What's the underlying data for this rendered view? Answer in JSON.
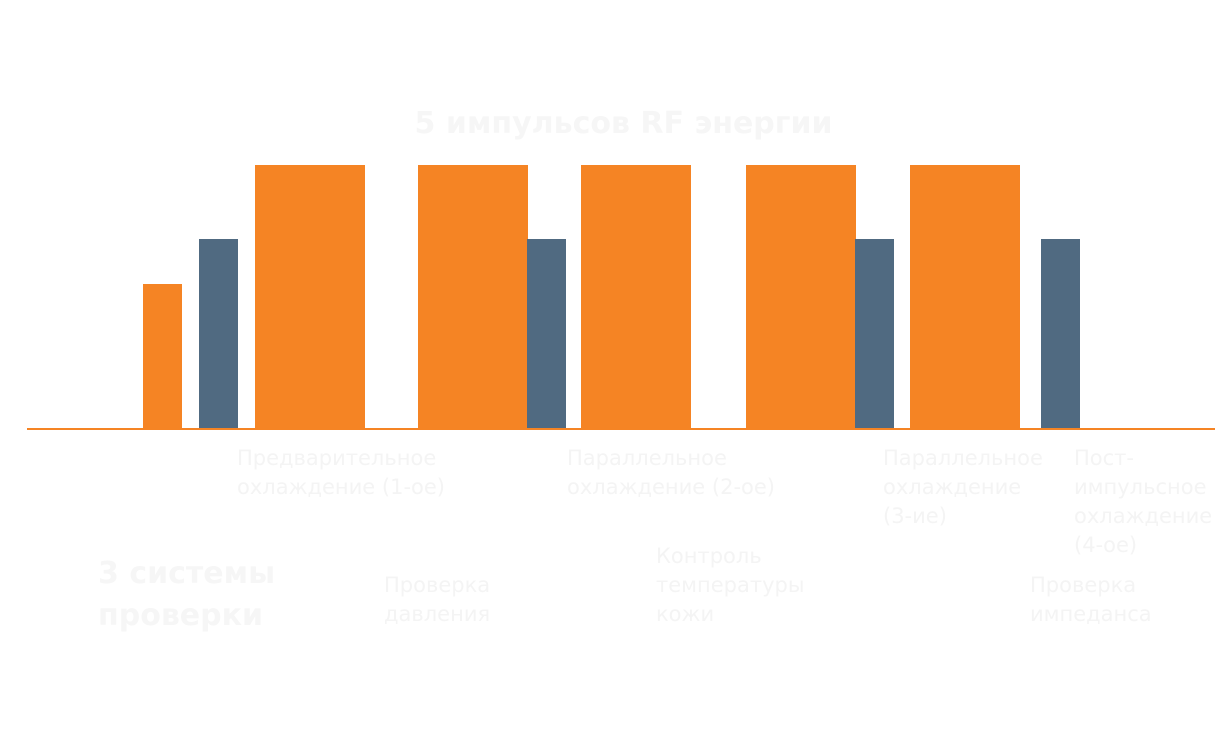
{
  "title": "5 импульсов RF энергии",
  "systems_heading": "3 системы\nпроверки",
  "colors": {
    "rf_pulse": "#f58424",
    "cooling": "#506a81",
    "text": "#f4f4f4"
  },
  "bars": [
    {
      "kind": "pre_pulse",
      "color": "orange",
      "level": 0.55
    },
    {
      "kind": "cooling",
      "color": "slate",
      "level": 0.72
    },
    {
      "kind": "rf_pulse",
      "color": "orange",
      "level": 1.0
    },
    {
      "kind": "rf_pulse",
      "color": "orange",
      "level": 1.0
    },
    {
      "kind": "cooling",
      "color": "slate",
      "level": 0.72
    },
    {
      "kind": "rf_pulse",
      "color": "orange",
      "level": 1.0
    },
    {
      "kind": "rf_pulse",
      "color": "orange",
      "level": 1.0
    },
    {
      "kind": "cooling",
      "color": "slate",
      "level": 0.72
    },
    {
      "kind": "rf_pulse",
      "color": "orange",
      "level": 1.0
    },
    {
      "kind": "cooling",
      "color": "slate",
      "level": 0.72
    }
  ],
  "cooling_labels": [
    "Предварительное\nохлаждение (1-ое)",
    "Параллельное\nохлаждение (2-ое)",
    "Параллельное\nохлаждение\n(3-ие)",
    "Пост-\nимпульсное\nохлаждение\n(4-ое)"
  ],
  "check_labels": [
    "Проверка\nдавления",
    "Контроль\nтемпературы\nкожи",
    "Проверка\nимпеданса"
  ]
}
